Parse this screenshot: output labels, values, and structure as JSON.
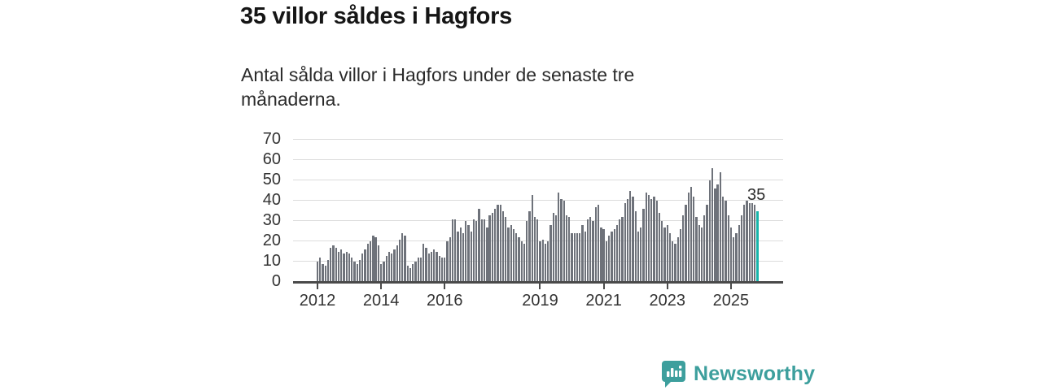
{
  "header": {
    "title": "35 villor såldes i Hagfors",
    "subtitle": "Antal sålda villor i Hagfors under de senaste tre månaderna."
  },
  "chart_data": {
    "type": "bar",
    "description": "Antal sålda villor per rullande tremånadersperiod, månadsvis 2012–2025",
    "start_month": "2012-01",
    "values": [
      10,
      12,
      9,
      8,
      11,
      17,
      18,
      17,
      15,
      16,
      14,
      15,
      14,
      12,
      10,
      9,
      11,
      14,
      16,
      19,
      20,
      23,
      22,
      18,
      9,
      10,
      13,
      15,
      14,
      16,
      18,
      21,
      24,
      23,
      8,
      7,
      9,
      10,
      12,
      12,
      19,
      17,
      14,
      15,
      16,
      15,
      13,
      12,
      12,
      20,
      22,
      31,
      31,
      25,
      27,
      24,
      30,
      28,
      25,
      31,
      30,
      36,
      31,
      31,
      27,
      33,
      34,
      36,
      38,
      38,
      35,
      32,
      27,
      28,
      26,
      24,
      22,
      20,
      19,
      30,
      35,
      43,
      32,
      31,
      20,
      21,
      19,
      20,
      28,
      34,
      33,
      44,
      41,
      40,
      33,
      32,
      24,
      24,
      24,
      24,
      28,
      25,
      31,
      32,
      30,
      37,
      38,
      27,
      26,
      20,
      23,
      25,
      26,
      28,
      31,
      32,
      39,
      41,
      45,
      42,
      35,
      25,
      27,
      36,
      44,
      43,
      41,
      42,
      40,
      34,
      30,
      27,
      28,
      24,
      20,
      19,
      22,
      26,
      33,
      38,
      44,
      47,
      42,
      32,
      28,
      27,
      33,
      38,
      50,
      56,
      46,
      48,
      54,
      42,
      40,
      33,
      27,
      22,
      24,
      28,
      33,
      38,
      40,
      39,
      39,
      38,
      35
    ],
    "highlight_index": 166,
    "highlight_label": "35",
    "ylim": [
      0,
      70
    ],
    "yticks": [
      0,
      10,
      20,
      30,
      40,
      50,
      60,
      70
    ],
    "xticks": [
      {
        "label": "2012",
        "year": 2012
      },
      {
        "label": "2014",
        "year": 2014
      },
      {
        "label": "2016",
        "year": 2016
      },
      {
        "label": "2019",
        "year": 2019
      },
      {
        "label": "2021",
        "year": 2021
      },
      {
        "label": "2023",
        "year": 2023
      },
      {
        "label": "2025",
        "year": 2025
      }
    ],
    "grid": true,
    "legend": "none",
    "bar_color": "#6e727a",
    "highlight_color": "#17b5aa"
  },
  "footer": {
    "brand": "Newsworthy",
    "brand_color": "#3d9f9d"
  }
}
